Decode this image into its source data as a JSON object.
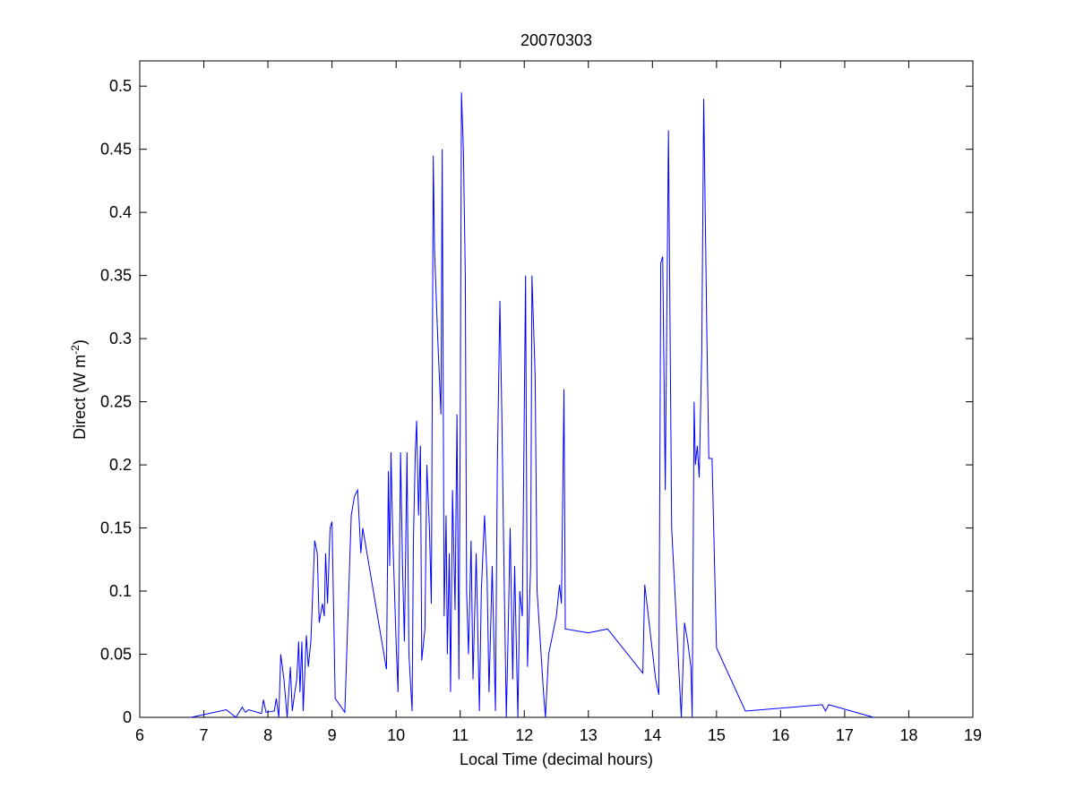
{
  "chart_data": {
    "type": "line",
    "title": "20070303",
    "xlabel": "Local Time (decimal hours)",
    "ylabel": [
      "Direct (W m",
      "-2",
      ")"
    ],
    "xlim": [
      6,
      19
    ],
    "xticks": [
      6,
      7,
      8,
      9,
      10,
      11,
      12,
      13,
      14,
      15,
      16,
      17,
      18,
      19
    ],
    "ylim": [
      0,
      0.52
    ],
    "yticks": [
      0,
      0.05,
      0.1,
      0.15,
      0.2,
      0.25,
      0.3,
      0.35,
      0.4,
      0.45,
      0.5
    ],
    "grid": false,
    "x": [
      6.8,
      7.35,
      7.5,
      7.6,
      7.65,
      7.7,
      7.9,
      7.93,
      7.97,
      8.1,
      8.13,
      8.17,
      8.2,
      8.25,
      8.3,
      8.35,
      8.38,
      8.42,
      8.45,
      8.48,
      8.5,
      8.53,
      8.55,
      8.6,
      8.63,
      8.67,
      8.7,
      8.73,
      8.77,
      8.8,
      8.85,
      8.88,
      8.9,
      8.93,
      8.97,
      9.0,
      9.05,
      9.2,
      9.3,
      9.35,
      9.4,
      9.45,
      9.48,
      9.85,
      9.88,
      9.9,
      9.92,
      9.95,
      10.0,
      10.03,
      10.07,
      10.1,
      10.13,
      10.17,
      10.2,
      10.25,
      10.27,
      10.3,
      10.32,
      10.35,
      10.38,
      10.4,
      10.45,
      10.48,
      10.52,
      10.55,
      10.58,
      10.6,
      10.65,
      10.7,
      10.72,
      10.75,
      10.78,
      10.8,
      10.83,
      10.85,
      10.88,
      10.92,
      10.95,
      10.98,
      11.0,
      11.02,
      11.05,
      11.08,
      11.1,
      11.13,
      11.17,
      11.2,
      11.25,
      11.3,
      11.33,
      11.38,
      11.42,
      11.45,
      11.5,
      11.55,
      11.58,
      11.62,
      11.65,
      11.68,
      11.72,
      11.75,
      11.78,
      11.82,
      11.85,
      11.9,
      11.93,
      11.97,
      12.02,
      12.05,
      12.1,
      12.12,
      12.17,
      12.2,
      12.25,
      12.3,
      12.33,
      12.38,
      12.5,
      12.55,
      12.58,
      12.62,
      12.64,
      13.0,
      13.3,
      13.85,
      13.88,
      14.05,
      14.1,
      14.13,
      14.16,
      14.2,
      14.25,
      14.3,
      14.45,
      14.5,
      14.55,
      14.6,
      14.62,
      14.65,
      14.67,
      14.7,
      14.73,
      14.77,
      14.8,
      14.85,
      14.88,
      14.93,
      15.0,
      15.45,
      16.65,
      16.7,
      16.75,
      17.45
    ],
    "series": [
      {
        "color": "#0000ff",
        "values": [
          0,
          0.006,
          0.0,
          0.008,
          0.004,
          0.006,
          0.003,
          0.014,
          0.004,
          0.005,
          0.015,
          0.0,
          0.05,
          0.03,
          0.0,
          0.04,
          0.005,
          0.02,
          0.03,
          0.06,
          0.02,
          0.06,
          0.005,
          0.065,
          0.04,
          0.06,
          0.1,
          0.14,
          0.13,
          0.075,
          0.09,
          0.08,
          0.13,
          0.09,
          0.15,
          0.155,
          0.015,
          0.004,
          0.16,
          0.175,
          0.18,
          0.13,
          0.15,
          0.038,
          0.195,
          0.12,
          0.21,
          0.14,
          0.06,
          0.02,
          0.21,
          0.12,
          0.06,
          0.21,
          0.05,
          0.005,
          0.14,
          0.21,
          0.235,
          0.16,
          0.215,
          0.045,
          0.07,
          0.2,
          0.15,
          0.09,
          0.445,
          0.37,
          0.3,
          0.24,
          0.45,
          0.08,
          0.16,
          0.05,
          0.13,
          0.02,
          0.18,
          0.085,
          0.24,
          0.03,
          0.22,
          0.495,
          0.45,
          0.35,
          0.1,
          0.05,
          0.14,
          0.03,
          0.13,
          0.005,
          0.1,
          0.16,
          0.11,
          0.02,
          0.12,
          0.005,
          0.2,
          0.33,
          0.24,
          0.13,
          0.0,
          0.07,
          0.15,
          0.03,
          0.12,
          0.0,
          0.1,
          0.08,
          0.35,
          0.04,
          0.12,
          0.35,
          0.27,
          0.1,
          0.06,
          0.02,
          0.0,
          0.05,
          0.08,
          0.105,
          0.09,
          0.26,
          0.07,
          0.067,
          0.07,
          0.035,
          0.105,
          0.03,
          0.018,
          0.36,
          0.365,
          0.18,
          0.465,
          0.15,
          0.0,
          0.075,
          0.06,
          0.04,
          0.0,
          0.25,
          0.2,
          0.215,
          0.19,
          0.29,
          0.49,
          0.3,
          0.205,
          0.205,
          0.055,
          0.005,
          0.01,
          0.005,
          0.01,
          0.0
        ]
      }
    ]
  }
}
